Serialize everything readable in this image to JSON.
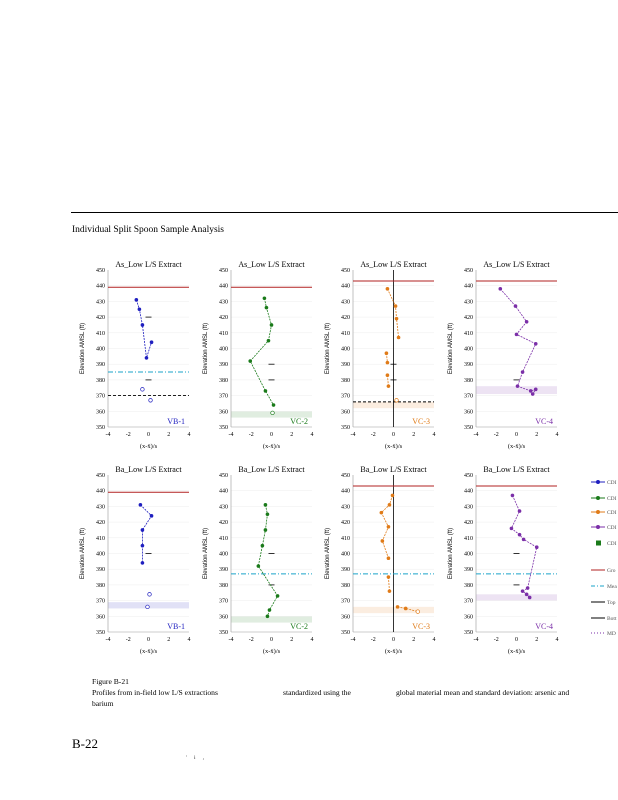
{
  "section_title": "Individual Split Spoon Sample Analysis",
  "caption": {
    "line1": "Figure B-21",
    "line2_a": "Profiles from in-field low L/S extractions",
    "line2_b": "standardized using the",
    "line2_c": "global material mean and standard deviation: arsenic and",
    "line3": "barium"
  },
  "page_number": "B-22",
  "footer_mark": "' i ,",
  "legend": {
    "items": [
      {
        "label": "CDI",
        "color": "#1f1fbf",
        "style": "marker-line"
      },
      {
        "label": "CDI",
        "color": "#1a7a1a",
        "style": "marker-line"
      },
      {
        "label": "CDI",
        "color": "#e07b18",
        "style": "marker-line"
      },
      {
        "label": "CDI",
        "color": "#7b2fa8",
        "style": "marker-line"
      },
      {
        "label": "CDI",
        "color": "#1a7a1a",
        "style": "square"
      },
      {
        "label": "Gro",
        "color": "#b22222",
        "style": "line"
      },
      {
        "label": "Mea",
        "color": "#1aa3c9",
        "style": "dashdot"
      },
      {
        "label": "Top",
        "color": "#000000",
        "style": "line"
      },
      {
        "label": "Bott",
        "color": "#000000",
        "style": "line"
      },
      {
        "label": "MD",
        "color": "#7b2fa8",
        "style": "dotted"
      }
    ]
  },
  "chart_data": [
    {
      "type": "line",
      "title": "As_Low L/S Extract",
      "label": "VB-1",
      "color": "#1f1fbf",
      "xlabel": "(x-x̄)/s",
      "ylabel": "Elevation AMSL (ft)",
      "xlim": [
        -4,
        4
      ],
      "ylim": [
        350,
        450
      ],
      "x_ticks": [
        -4,
        -2,
        0,
        2,
        4
      ],
      "y_ticks": [
        350,
        360,
        370,
        380,
        390,
        400,
        410,
        420,
        430,
        440,
        450
      ],
      "ground_surface": 439,
      "mean_water": 385,
      "top_line": null,
      "bottom_dashed": 370,
      "band": null,
      "series": [
        {
          "name": "profile",
          "x": [
            -1.2,
            -0.9,
            -0.6,
            -0.2,
            0.3
          ],
          "y": [
            431,
            425,
            415,
            394,
            404
          ]
        }
      ],
      "open_points": [
        {
          "x": -0.6,
          "y": 374
        },
        {
          "x": 0.2,
          "y": 367
        }
      ],
      "short_ticks": [
        {
          "x": 0,
          "y": 420
        },
        {
          "x": 0,
          "y": 380
        }
      ]
    },
    {
      "type": "line",
      "title": "As_Low L/S Extract",
      "label": "VC-2",
      "color": "#1a7a1a",
      "xlabel": "(x-x̄)/s",
      "ylabel": "Elevation AMSL (ft)",
      "xlim": [
        -4,
        4
      ],
      "ylim": [
        350,
        450
      ],
      "x_ticks": [
        -4,
        -2,
        0,
        2,
        4
      ],
      "y_ticks": [
        350,
        360,
        370,
        380,
        390,
        400,
        410,
        420,
        430,
        440,
        450
      ],
      "ground_surface": 439,
      "mean_water": null,
      "top_line": null,
      "bottom_dashed": null,
      "band": [
        356,
        360
      ],
      "series": [
        {
          "name": "profile",
          "x": [
            -0.7,
            -0.5,
            0,
            -0.3,
            -2.1,
            -0.6,
            0.2
          ],
          "y": [
            432,
            426,
            415,
            405,
            392,
            373,
            364
          ]
        }
      ],
      "open_points": [
        {
          "x": 0.1,
          "y": 359
        }
      ],
      "short_ticks": [
        {
          "x": 0,
          "y": 390
        },
        {
          "x": 0,
          "y": 380
        }
      ]
    },
    {
      "type": "line",
      "title": "As_Low L/S Extract",
      "label": "VC-3",
      "color": "#e07b18",
      "xlabel": "(x-x̄)/s",
      "ylabel": "Elevation AMSL (ft)",
      "xlim": [
        -4,
        4
      ],
      "ylim": [
        350,
        450
      ],
      "x_ticks": [
        -4,
        -2,
        0,
        2,
        4
      ],
      "y_ticks": [
        350,
        360,
        370,
        380,
        390,
        400,
        410,
        420,
        430,
        440,
        450
      ],
      "ground_surface": 443,
      "mean_water": null,
      "top_line": null,
      "bottom_dashed": 366,
      "band": [
        362,
        366
      ],
      "vertical_zero": true,
      "series": [
        {
          "name": "profile",
          "x": [
            -0.6,
            0.2,
            0.3,
            0.5
          ],
          "y": [
            438,
            427,
            419,
            407
          ]
        },
        {
          "name": "lower",
          "x": [
            -0.7,
            -0.6
          ],
          "y": [
            397,
            391
          ]
        },
        {
          "name": "lower2",
          "x": [
            -0.6,
            -0.5
          ],
          "y": [
            383,
            376
          ]
        }
      ],
      "open_points": [
        {
          "x": 0.3,
          "y": 367
        }
      ],
      "short_ticks": [
        {
          "x": 0,
          "y": 390
        },
        {
          "x": 0,
          "y": 380
        }
      ]
    },
    {
      "type": "line",
      "title": "As_Low L/S Extract",
      "label": "VC-4",
      "color": "#7b2fa8",
      "xlabel": "(x-x̄)/s",
      "ylabel": "Elevation AMSL (ft)",
      "xlim": [
        -4,
        4
      ],
      "ylim": [
        350,
        450
      ],
      "x_ticks": [
        -4,
        -2,
        0,
        2,
        4
      ],
      "y_ticks": [
        350,
        360,
        370,
        380,
        390,
        400,
        410,
        420,
        430,
        440,
        450
      ],
      "ground_surface": 443,
      "mean_water": null,
      "top_line": null,
      "bottom_dashed": null,
      "band": [
        371,
        376
      ],
      "series": [
        {
          "name": "profile",
          "x": [
            -1.6,
            -0.1,
            1.0,
            0.0,
            1.9,
            0.6,
            0.1,
            1.4,
            1.9,
            1.6
          ],
          "y": [
            438,
            427,
            417,
            409,
            403,
            385,
            376,
            373,
            374,
            371
          ]
        }
      ],
      "open_points": [],
      "short_ticks": [
        {
          "x": 0,
          "y": 380
        }
      ]
    },
    {
      "type": "line",
      "title": "Ba_Low L/S Extract",
      "label": "VB-1",
      "color": "#1f1fbf",
      "xlabel": "(x-x̄)/s",
      "ylabel": "Elevation AMSL (ft)",
      "xlim": [
        -4,
        4
      ],
      "ylim": [
        350,
        450
      ],
      "x_ticks": [
        -4,
        -2,
        0,
        2,
        4
      ],
      "y_ticks": [
        350,
        360,
        370,
        380,
        390,
        400,
        410,
        420,
        430,
        440,
        450
      ],
      "ground_surface": 439,
      "mean_water": null,
      "top_line": null,
      "bottom_dashed": null,
      "band": [
        365,
        369
      ],
      "series": [
        {
          "name": "profile",
          "x": [
            -0.8,
            0.3,
            -0.6,
            -0.6,
            -0.6
          ],
          "y": [
            431,
            424,
            415,
            405,
            394
          ]
        }
      ],
      "open_points": [
        {
          "x": 0.1,
          "y": 374
        },
        {
          "x": -0.1,
          "y": 366
        }
      ],
      "short_ticks": [
        {
          "x": 0,
          "y": 400
        }
      ]
    },
    {
      "type": "line",
      "title": "Ba_Low L/S Extract",
      "label": "VC-2",
      "color": "#1a7a1a",
      "xlabel": "(x-x̄)/s",
      "ylabel": "Elevation AMSL (ft)",
      "xlim": [
        -4,
        4
      ],
      "ylim": [
        350,
        450
      ],
      "x_ticks": [
        -4,
        -2,
        0,
        2,
        4
      ],
      "y_ticks": [
        350,
        360,
        370,
        380,
        390,
        400,
        410,
        420,
        430,
        440,
        450
      ],
      "ground_surface": null,
      "mean_water": 387,
      "top_line": null,
      "bottom_dashed": null,
      "band": [
        356,
        360
      ],
      "series": [
        {
          "name": "profile",
          "x": [
            -0.6,
            -0.4,
            -0.6,
            -0.9,
            -1.3,
            0.6,
            -0.2,
            -0.4
          ],
          "y": [
            431,
            425,
            415,
            405,
            392,
            373,
            364,
            360
          ]
        }
      ],
      "open_points": [],
      "short_ticks": [
        {
          "x": 0,
          "y": 400
        },
        {
          "x": 0,
          "y": 380
        }
      ]
    },
    {
      "type": "line",
      "title": "Ba_Low L/S Extract",
      "label": "VC-3",
      "color": "#e07b18",
      "xlabel": "(x-x̄)/s",
      "ylabel": "Elevation AMSL (ft)",
      "xlim": [
        -4,
        4
      ],
      "ylim": [
        350,
        450
      ],
      "x_ticks": [
        -4,
        -2,
        0,
        2,
        4
      ],
      "y_ticks": [
        350,
        360,
        370,
        380,
        390,
        400,
        410,
        420,
        430,
        440,
        450
      ],
      "ground_surface": 443,
      "mean_water": 387,
      "top_line": null,
      "bottom_dashed": null,
      "band": [
        362,
        366
      ],
      "vertical_zero": true,
      "series": [
        {
          "name": "profile",
          "x": [
            -0.1,
            -0.4,
            -1.2,
            -0.5,
            -1.1,
            -0.5
          ],
          "y": [
            437,
            431,
            426,
            417,
            408,
            397
          ]
        },
        {
          "name": "lower",
          "x": [
            -0.5,
            -0.4
          ],
          "y": [
            385,
            376
          ]
        },
        {
          "name": "dotted",
          "x": [
            0.4,
            1.2,
            2.4
          ],
          "y": [
            366,
            365,
            363
          ]
        }
      ],
      "open_points": [
        {
          "x": 2.4,
          "y": 363
        }
      ],
      "short_ticks": []
    },
    {
      "type": "line",
      "title": "Ba_Low L/S Extract",
      "label": "VC-4",
      "color": "#7b2fa8",
      "xlabel": "(x-x̄)/s",
      "ylabel": "Elevation AMSL (ft)",
      "xlim": [
        -4,
        4
      ],
      "ylim": [
        350,
        450
      ],
      "x_ticks": [
        -4,
        -2,
        0,
        2,
        4
      ],
      "y_ticks": [
        350,
        360,
        370,
        380,
        390,
        400,
        410,
        420,
        430,
        440,
        450
      ],
      "ground_surface": 443,
      "mean_water": 387,
      "top_line": null,
      "bottom_dashed": null,
      "band": [
        370,
        374
      ],
      "series": [
        {
          "name": "profile",
          "x": [
            -0.4,
            0.3,
            -0.5,
            0.3,
            0.7,
            2.0,
            1.1,
            0.6,
            1.0,
            1.3
          ],
          "y": [
            437,
            427,
            416,
            412,
            409,
            404,
            378,
            376,
            374,
            372
          ]
        }
      ],
      "open_points": [],
      "short_ticks": [
        {
          "x": 0,
          "y": 400
        },
        {
          "x": 0,
          "y": 380
        }
      ]
    }
  ]
}
